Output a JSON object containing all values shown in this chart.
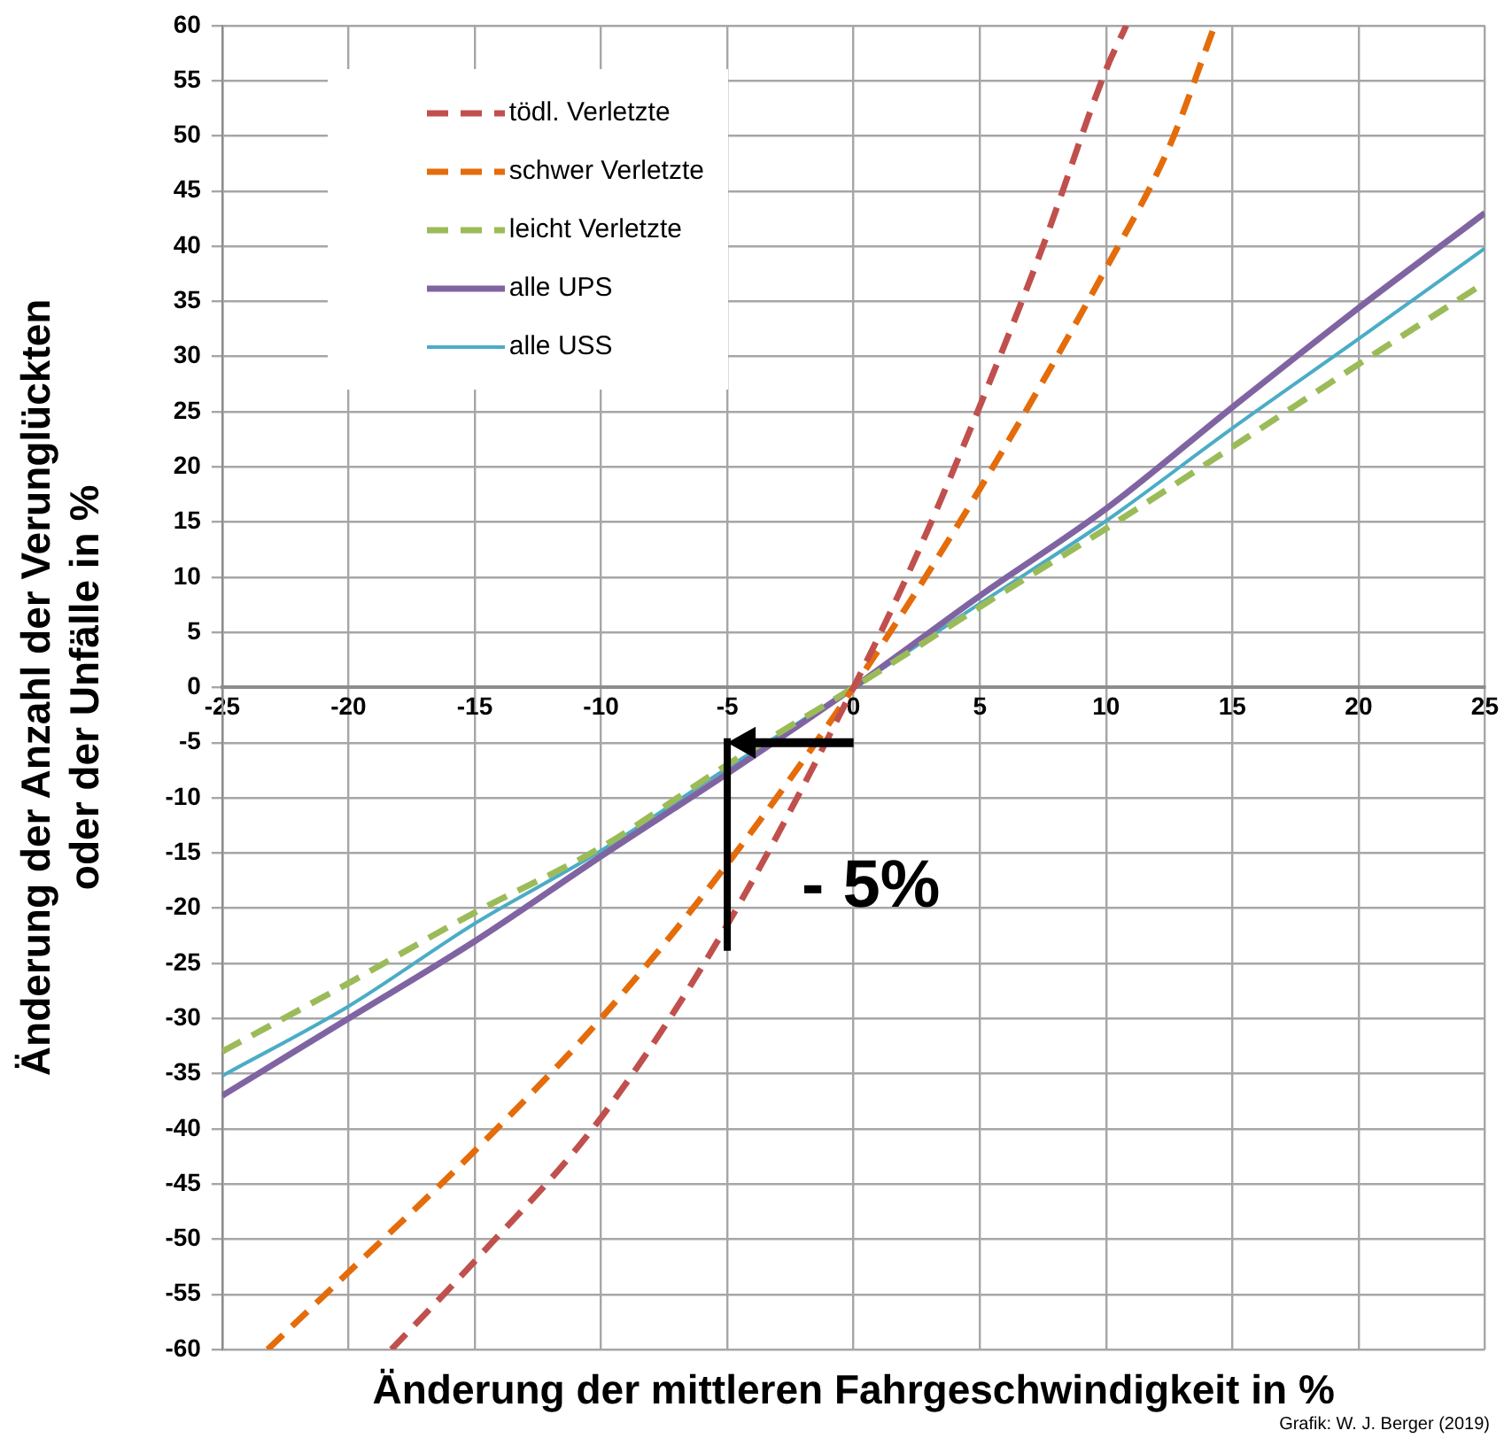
{
  "chart_data": {
    "type": "line",
    "xlabel": "Änderung der mittleren Fahrgeschwindigkeit in %",
    "ylabel": "Änderung der Anzahl der Verunglückten oder der Unfälle in %",
    "xlim": [
      -25,
      25
    ],
    "xticks": [
      -25,
      -20,
      -15,
      -10,
      -5,
      0,
      5,
      10,
      15,
      20,
      25
    ],
    "ylim": [
      -60,
      60
    ],
    "yticks": [
      -60,
      -55,
      -50,
      -45,
      -40,
      -35,
      -30,
      -25,
      -20,
      -15,
      -10,
      -5,
      0,
      5,
      10,
      15,
      20,
      25,
      30,
      35,
      40,
      45,
      50,
      55,
      60
    ],
    "grid": true,
    "legend": "top left",
    "marker": "none",
    "series": [
      {
        "name": "tödl. Verletzte",
        "color": "#c0504d",
        "line_style": "dashed",
        "x": [
          -18.3,
          -15,
          -10,
          -5,
          0,
          2.5,
          5,
          7.5,
          10,
          10.8
        ],
        "values": [
          -60,
          -52,
          -39,
          -21.5,
          0,
          12,
          25.5,
          40,
          56,
          60
        ]
      },
      {
        "name": "schwer Verletzte",
        "color": "#e46c0a",
        "line_style": "dashed",
        "x": [
          -23.2,
          -20,
          -15,
          -10,
          -5,
          0,
          5,
          10,
          12.5,
          14.3
        ],
        "values": [
          -60,
          -53,
          -42,
          -30,
          -16,
          0,
          18,
          38,
          49,
          60
        ]
      },
      {
        "name": "leicht Verletzte",
        "color": "#9bbb59",
        "line_style": "dashed",
        "x": [
          -25,
          -20,
          -15,
          -10,
          -5,
          0,
          5,
          10,
          15,
          20,
          25
        ],
        "values": [
          -33,
          -26.8,
          -20.4,
          -14.5,
          -7,
          0,
          7.3,
          14.4,
          21.8,
          29.3,
          36.7
        ]
      },
      {
        "name": "alle UPS",
        "color": "#8064a2",
        "line_style": "solid",
        "x": [
          -25,
          -20,
          -15,
          -10,
          -5,
          0,
          5,
          10,
          15,
          20,
          25
        ],
        "values": [
          -37,
          -30,
          -23,
          -15.3,
          -7.8,
          0,
          8.3,
          16.2,
          25.4,
          34.4,
          43
        ]
      },
      {
        "name": "alle USS",
        "color": "#4bacc6",
        "line_style": "solid",
        "x": [
          -25,
          -20,
          -15,
          -10,
          -5,
          0,
          5,
          10,
          15,
          20,
          25
        ],
        "values": [
          -35.2,
          -28.9,
          -21.4,
          -14.8,
          -7.3,
          0,
          7.6,
          15.1,
          23.5,
          31.6,
          39.8
        ]
      }
    ],
    "annotations": [
      "- 5%",
      "Grafik: W. J. Berger (2019)"
    ]
  }
}
